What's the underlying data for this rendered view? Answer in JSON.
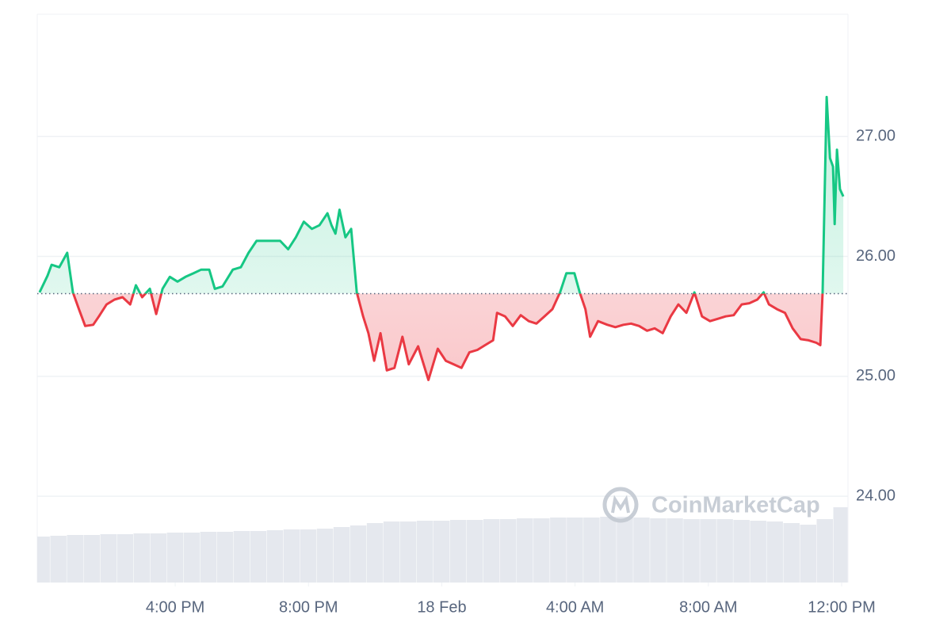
{
  "chart_data": {
    "type": "baseline-line",
    "watermark": "CoinMarketCap",
    "x": [
      11.93,
      12.17,
      12.29,
      12.52,
      12.76,
      12.93,
      13.11,
      13.3,
      13.54,
      13.71,
      13.94,
      14.18,
      14.42,
      14.65,
      14.82,
      15.01,
      15.24,
      15.43,
      15.62,
      15.84,
      16.07,
      16.31,
      16.55,
      16.78,
      17.02,
      17.19,
      17.42,
      17.73,
      17.97,
      18.2,
      18.44,
      18.68,
      18.91,
      19.15,
      19.39,
      19.62,
      19.86,
      20.1,
      20.33,
      20.57,
      20.69,
      20.81,
      20.93,
      21.11,
      21.28,
      21.45,
      21.64,
      21.8,
      21.97,
      22.16,
      22.35,
      22.58,
      22.82,
      23.01,
      23.29,
      23.6,
      23.88,
      24.12,
      24.36,
      24.59,
      24.83,
      25.07,
      25.3,
      25.54,
      25.66,
      25.9,
      26.13,
      26.37,
      26.61,
      26.84,
      27.08,
      27.32,
      27.55,
      27.74,
      27.98,
      28.14,
      28.31,
      28.45,
      28.69,
      28.97,
      29.21,
      29.45,
      29.68,
      29.92,
      30.16,
      30.39,
      30.63,
      30.87,
      31.1,
      31.34,
      31.58,
      31.81,
      32.05,
      32.29,
      32.52,
      32.76,
      33.0,
      33.23,
      33.47,
      33.66,
      33.82,
      34.06,
      34.3,
      34.53,
      34.77,
      35.01,
      35.24,
      35.36,
      35.43,
      35.55,
      35.65,
      35.74,
      35.79,
      35.86,
      35.95,
      36.05
    ],
    "values": [
      25.7,
      25.84,
      25.93,
      25.91,
      26.03,
      25.7,
      25.56,
      25.42,
      25.43,
      25.5,
      25.6,
      25.64,
      25.66,
      25.6,
      25.76,
      25.66,
      25.73,
      25.52,
      25.73,
      25.83,
      25.79,
      25.83,
      25.86,
      25.89,
      25.89,
      25.73,
      25.75,
      25.89,
      25.91,
      26.03,
      26.13,
      26.13,
      26.13,
      26.13,
      26.06,
      26.16,
      26.29,
      26.23,
      26.26,
      26.36,
      26.26,
      26.19,
      26.39,
      26.16,
      26.23,
      25.7,
      25.5,
      25.36,
      25.13,
      25.36,
      25.05,
      25.07,
      25.33,
      25.1,
      25.25,
      24.97,
      25.23,
      25.13,
      25.1,
      25.07,
      25.2,
      25.22,
      25.26,
      25.3,
      25.53,
      25.5,
      25.42,
      25.51,
      25.46,
      25.44,
      25.5,
      25.56,
      25.7,
      25.86,
      25.86,
      25.7,
      25.56,
      25.33,
      25.46,
      25.43,
      25.41,
      25.43,
      25.44,
      25.42,
      25.38,
      25.4,
      25.36,
      25.5,
      25.6,
      25.53,
      25.7,
      25.5,
      25.46,
      25.48,
      25.5,
      25.51,
      25.6,
      25.61,
      25.64,
      25.7,
      25.6,
      25.56,
      25.53,
      25.4,
      25.31,
      25.3,
      25.28,
      25.26,
      25.7,
      27.33,
      26.82,
      26.75,
      26.27,
      26.89,
      26.56,
      26.5
    ],
    "baseline": 25.69,
    "up_color": "#16c784",
    "down_color": "#ea3943",
    "volume": {
      "color": "#e5e8ee",
      "x": [
        12,
        12.5,
        13,
        13.5,
        14,
        14.5,
        15,
        15.5,
        16,
        16.5,
        17,
        17.5,
        18,
        18.5,
        19,
        19.5,
        20,
        20.5,
        21,
        21.5,
        22,
        22.5,
        23,
        23.5,
        24,
        24.5,
        25,
        25.5,
        26,
        26.5,
        27,
        27.5,
        28,
        28.5,
        29,
        29.5,
        30,
        30.5,
        31,
        31.5,
        32,
        32.5,
        33,
        33.5,
        34,
        34.5,
        35,
        35.5,
        36
      ],
      "values": [
        58,
        59,
        60,
        60,
        61,
        61,
        62,
        62,
        63,
        63,
        64,
        64,
        65,
        65,
        66,
        67,
        67,
        68,
        70,
        72,
        75,
        77,
        77,
        78,
        78,
        79,
        79,
        80,
        80,
        81,
        81,
        82,
        82,
        82,
        83,
        83,
        82,
        81,
        81,
        80,
        80,
        80,
        79,
        78,
        77,
        75,
        73,
        80,
        95
      ],
      "lim": [
        0,
        100
      ]
    },
    "xlim": [
      11.86,
      36.19
    ],
    "xticks": [
      {
        "value": 16,
        "label": "4:00 PM"
      },
      {
        "value": 20,
        "label": "8:00 PM"
      },
      {
        "value": 24,
        "label": "18 Feb"
      },
      {
        "value": 28,
        "label": "4:00 AM"
      },
      {
        "value": 32,
        "label": "8:00 AM"
      },
      {
        "value": 36,
        "label": "12:00 PM"
      }
    ],
    "ylim": [
      23.28,
      28.02
    ],
    "yticks": [
      {
        "value": 24,
        "label": "24.00"
      },
      {
        "value": 25,
        "label": "25.00"
      },
      {
        "value": 26,
        "label": "26.00"
      },
      {
        "value": 27,
        "label": "27.00"
      }
    ],
    "grid": true
  }
}
